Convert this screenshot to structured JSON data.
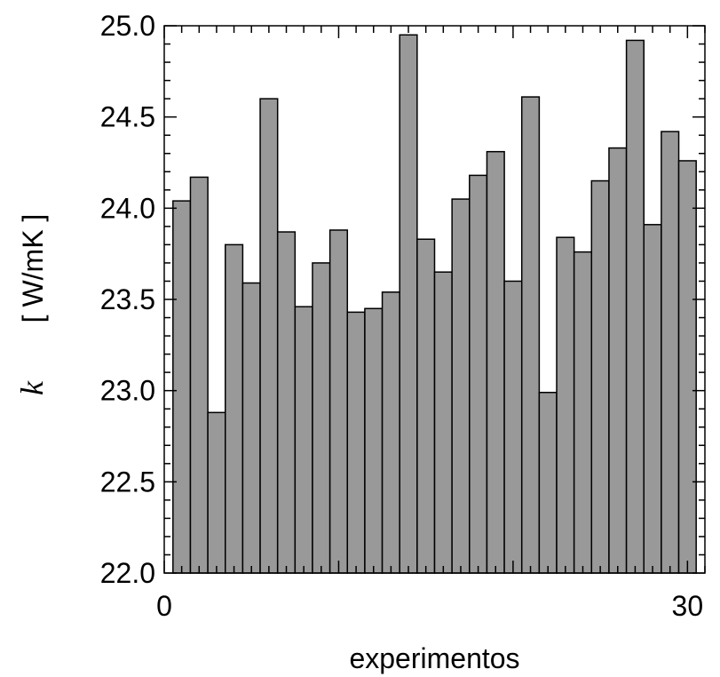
{
  "chart_data": {
    "type": "bar",
    "title": "",
    "xlabel": "experimentos",
    "ylabel": {
      "symbol": "k",
      "unit": "[ W/mK ]"
    },
    "xlim": [
      0,
      31
    ],
    "ylim": [
      22.0,
      25.0
    ],
    "x_tick_labels": [
      "0",
      "30"
    ],
    "y_tick_labels": [
      "22.0",
      "22.5",
      "23.0",
      "23.5",
      "24.0",
      "24.5",
      "25.0"
    ],
    "x_tick_values": [
      0,
      30
    ],
    "y_tick_values": [
      22.0,
      22.5,
      23.0,
      23.5,
      24.0,
      24.5,
      25.0
    ],
    "categories": [
      1,
      2,
      3,
      4,
      5,
      6,
      7,
      8,
      9,
      10,
      11,
      12,
      13,
      14,
      15,
      16,
      17,
      18,
      19,
      20,
      21,
      22,
      23,
      24,
      25,
      26,
      27,
      28,
      29,
      30
    ],
    "values": [
      24.04,
      24.17,
      22.88,
      23.8,
      23.59,
      24.6,
      23.87,
      23.46,
      23.7,
      23.88,
      23.43,
      23.45,
      23.54,
      24.95,
      23.83,
      23.65,
      24.05,
      24.18,
      24.31,
      23.6,
      24.61,
      22.99,
      23.84,
      23.76,
      24.15,
      24.33,
      24.92,
      23.91,
      24.42,
      24.26
    ],
    "bar_color": "#999999",
    "bar_edge_color": "#000000",
    "grid": false,
    "legend": "none"
  }
}
